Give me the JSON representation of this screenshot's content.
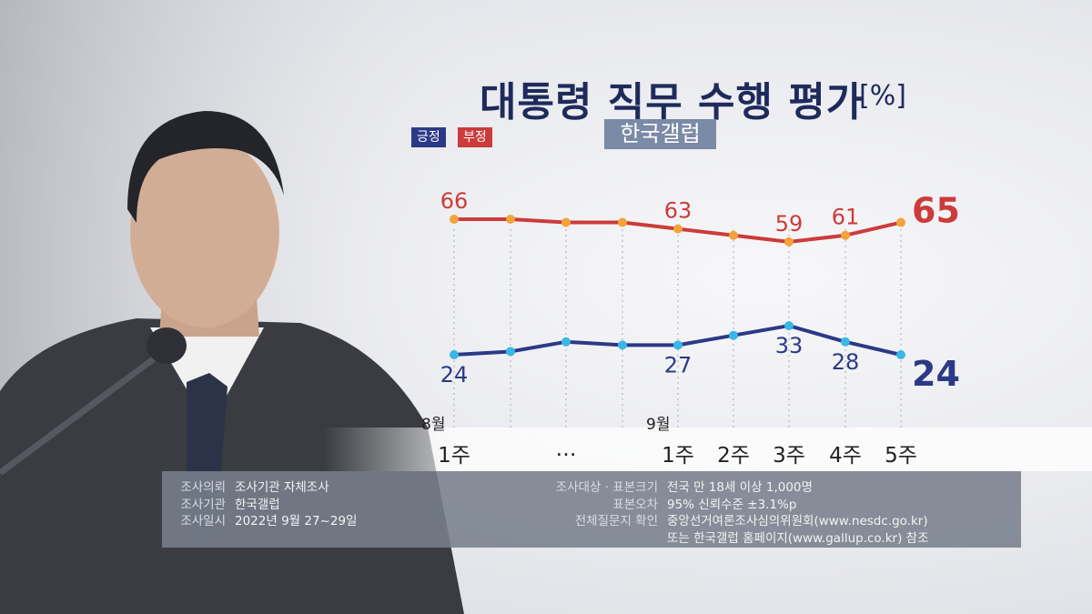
{
  "title": "대통령 직무 수행 평가",
  "unit": "[%]",
  "source": "한국갤럽",
  "legend": {
    "positive": "긍정",
    "negative": "부정"
  },
  "colors": {
    "positive": "#2b3a86",
    "negative": "#cc3b3b",
    "positive_dot": "#38b8e6",
    "negative_dot": "#f2a33a"
  },
  "chart_data": {
    "type": "line",
    "categories": [
      "8월 1주",
      "",
      "…",
      "",
      "9월 1주",
      "2주",
      "3주",
      "4주",
      "5주"
    ],
    "month_labels": [
      "8월",
      "9월"
    ],
    "week_labels": [
      "1주",
      "…",
      "1주",
      "2주",
      "3주",
      "4주",
      "5주"
    ],
    "series": [
      {
        "name": "부정",
        "values": [
          66,
          66,
          65,
          65,
          63,
          61,
          59,
          61,
          65
        ],
        "labels": [
          "66",
          null,
          null,
          null,
          "63",
          null,
          "59",
          "61",
          "65"
        ]
      },
      {
        "name": "긍정",
        "values": [
          24,
          25,
          28,
          27,
          27,
          30,
          33,
          28,
          24
        ],
        "labels": [
          "24",
          null,
          null,
          null,
          "27",
          null,
          "33",
          "28",
          "24"
        ]
      }
    ]
  },
  "info": {
    "left": [
      {
        "key": "조사의뢰",
        "value": "조사기관 자체조사"
      },
      {
        "key": "조사기관",
        "value": "한국갤럽"
      },
      {
        "key": "조사일시",
        "value": "2022년 9월 27~29일"
      }
    ],
    "right": [
      {
        "key": "조사대상 · 표본크기",
        "value": "전국 만 18세 이상 1,000명"
      },
      {
        "key": "표본오차",
        "value": "95% 신뢰수준 ±3.1%p"
      },
      {
        "key": "전체질문지 확인",
        "value": "중앙선거여론조사심의위원회(www.nesdc.go.kr)"
      },
      {
        "key": "",
        "value": "또는 한국갤럽 홈페이지(www.gallup.co.kr) 참조"
      }
    ]
  }
}
